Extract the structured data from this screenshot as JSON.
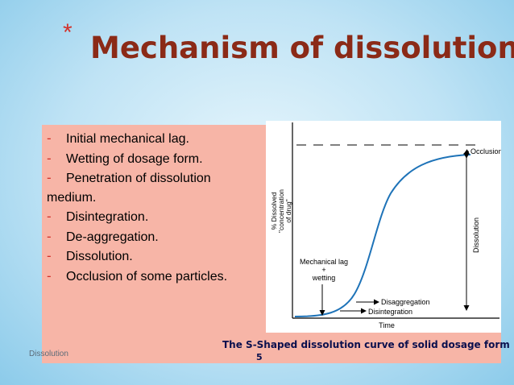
{
  "slide": {
    "title_marker": "*",
    "title": "Mechanism of dissolution",
    "bullet_marker": "-",
    "bullets": [
      "Initial mechanical lag.",
      "Wetting of dosage form.",
      "Penetration of dissolution"
    ],
    "bullet_continuation": "medium.",
    "bullets_after": [
      "Disintegration.",
      "De-aggregation.",
      "Dissolution.",
      "Occlusion of some particles."
    ],
    "caption": "The S-Shaped dissolution curve of solid dosage form",
    "footer_text": "Dissolution",
    "page_number": "5"
  },
  "diagram": {
    "ylabel_lines": [
      "% Dissolved",
      "\"concentration",
      "of drug\""
    ],
    "xlabel": "Time",
    "label_occlusion": "Occlusion",
    "label_dissolution": "Dissolution",
    "label_mech_lines": [
      "Mechanical lag",
      "+",
      "wetting"
    ],
    "label_disaggregation": "Disaggregation",
    "label_disintegration": "Disintegration"
  },
  "colors": {
    "background": "#bfe3f5",
    "panel": "#f7b5a7",
    "title": "#8b2a17",
    "accent": "#d2322b",
    "caption": "#0a0f4d",
    "curve": "#1e73b8"
  }
}
